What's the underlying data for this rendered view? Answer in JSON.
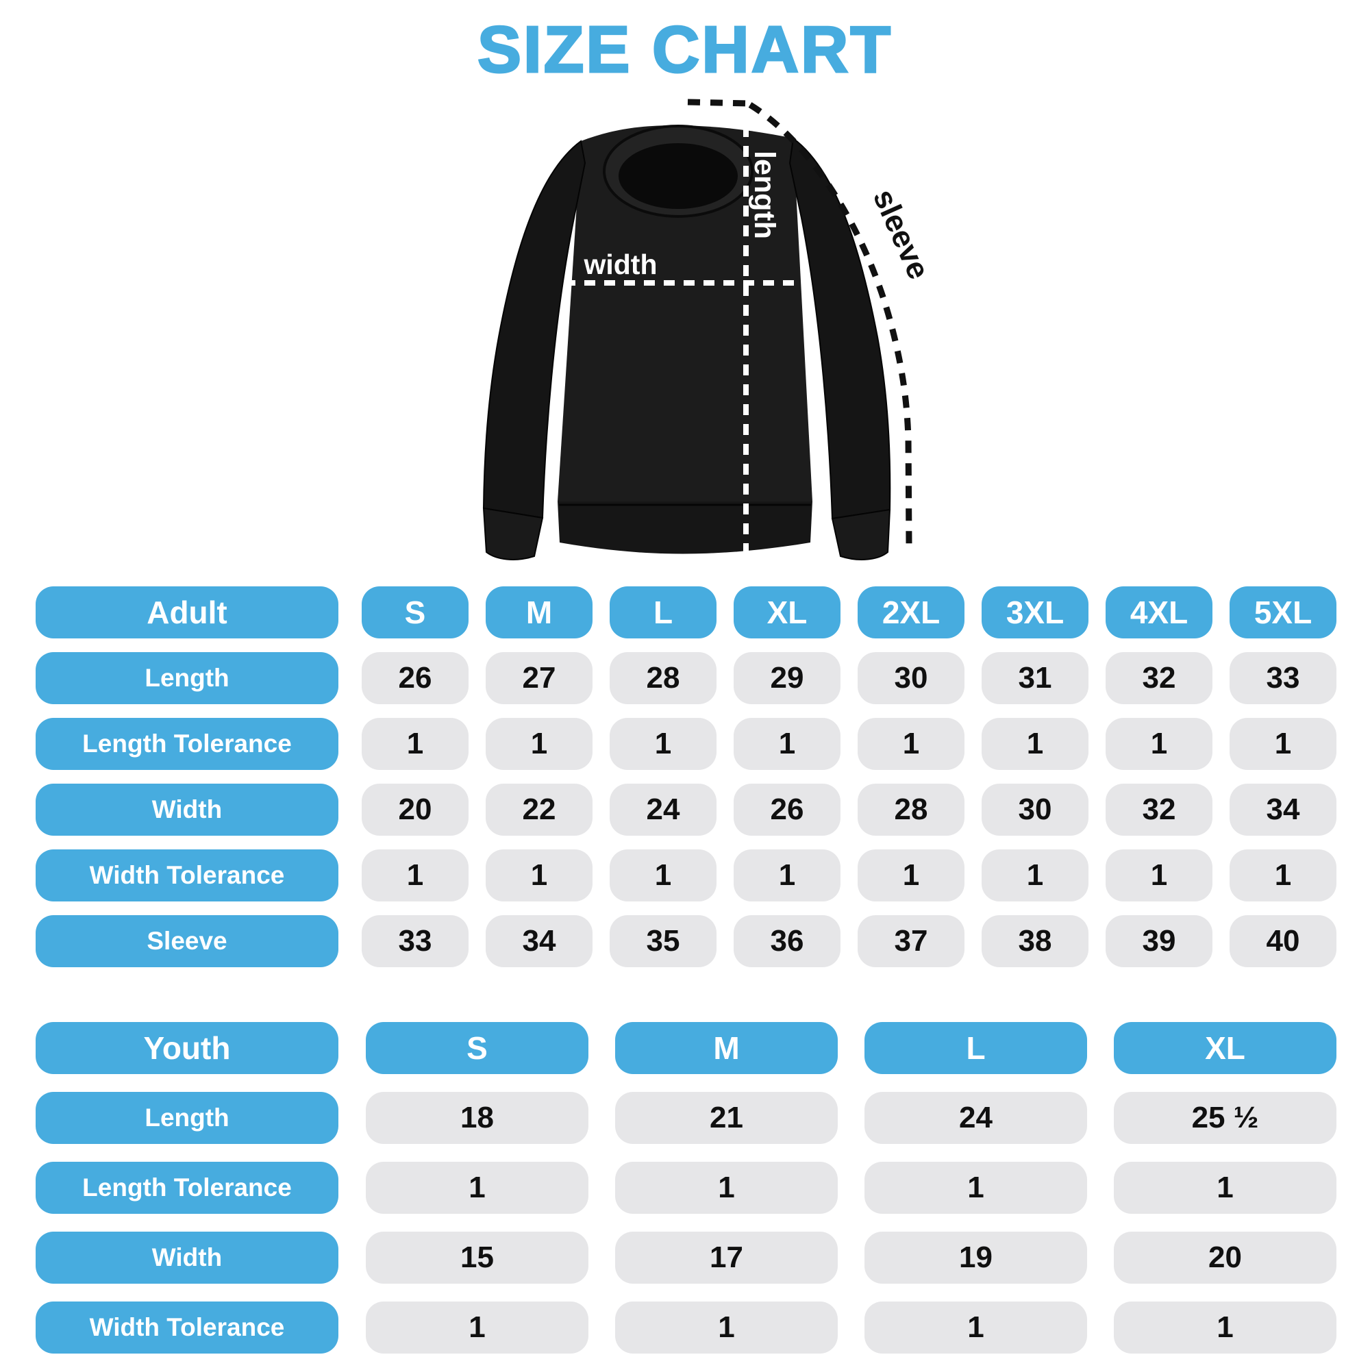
{
  "title": "SIZE CHART",
  "colors": {
    "accent_blue": "#47ACDF",
    "cell_grey": "#E6E6E8",
    "value_text": "#101010",
    "shirt_black": "#1B1B1B",
    "background": "#FFFFFF",
    "measure_line_white": "#FFFFFF",
    "measure_line_black": "#111111"
  },
  "diagram": {
    "width_label": "width",
    "length_label": "length",
    "sleeve_label": "sleeve"
  },
  "chart_data": [
    {
      "type": "table",
      "title": "Adult",
      "columns": [
        "Adult",
        "S",
        "M",
        "L",
        "XL",
        "2XL",
        "3XL",
        "4XL",
        "5XL"
      ],
      "rows": [
        [
          "Length",
          "26",
          "27",
          "28",
          "29",
          "30",
          "31",
          "32",
          "33"
        ],
        [
          "Length Tolerance",
          "1",
          "1",
          "1",
          "1",
          "1",
          "1",
          "1",
          "1"
        ],
        [
          "Width",
          "20",
          "22",
          "24",
          "26",
          "28",
          "30",
          "32",
          "34"
        ],
        [
          "Width Tolerance",
          "1",
          "1",
          "1",
          "1",
          "1",
          "1",
          "1",
          "1"
        ],
        [
          "Sleeve",
          "33",
          "34",
          "35",
          "36",
          "37",
          "38",
          "39",
          "40"
        ]
      ]
    },
    {
      "type": "table",
      "title": "Youth",
      "columns": [
        "Youth",
        "S",
        "M",
        "L",
        "XL"
      ],
      "rows": [
        [
          "Length",
          "18",
          "21",
          "24",
          "25 ½"
        ],
        [
          "Length Tolerance",
          "1",
          "1",
          "1",
          "1"
        ],
        [
          "Width",
          "15",
          "17",
          "19",
          "20"
        ],
        [
          "Width Tolerance",
          "1",
          "1",
          "1",
          "1"
        ]
      ]
    }
  ]
}
